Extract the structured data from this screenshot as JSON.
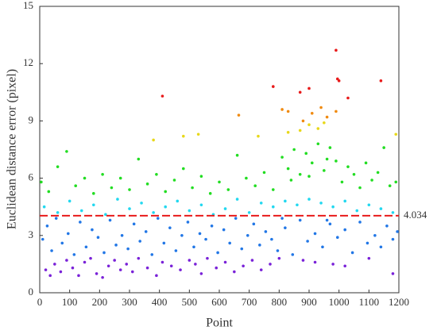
{
  "chart_data": {
    "type": "scatter",
    "xlabel": "Point",
    "ylabel": "Euclidean distance error (pixel)",
    "xlim": [
      0,
      1200
    ],
    "ylim": [
      0,
      15
    ],
    "xticks": [
      0,
      100,
      200,
      300,
      400,
      500,
      600,
      700,
      800,
      900,
      1000,
      1100,
      1200
    ],
    "yticks": [
      0,
      3,
      6,
      9,
      12,
      15
    ],
    "reference_line": {
      "y": 4.034,
      "color": "#e81a1a"
    },
    "series": [
      {
        "color": "#7a22d8",
        "x": [
          20,
          35,
          50,
          70,
          90,
          110,
          130,
          150,
          170,
          190,
          210,
          230,
          250,
          270,
          290,
          310,
          330,
          360,
          390,
          410,
          440,
          470,
          500,
          520,
          540,
          560,
          590,
          620,
          650,
          680,
          710,
          740,
          770,
          800,
          880,
          920,
          980,
          1020,
          1100,
          1180
        ],
        "y": [
          1.2,
          0.9,
          1.5,
          1.1,
          1.7,
          1.3,
          0.9,
          1.6,
          1.8,
          1.0,
          0.8,
          1.4,
          1.7,
          1.2,
          1.5,
          1.1,
          1.8,
          1.3,
          0.9,
          1.6,
          1.4,
          1.2,
          1.7,
          1.5,
          1.0,
          1.8,
          1.3,
          1.6,
          1.1,
          1.4,
          1.7,
          1.2,
          1.5,
          1.8,
          1.7,
          1.6,
          1.5,
          1.4,
          1.8,
          1.0
        ]
      },
      {
        "color": "#2277e6",
        "x": [
          10,
          25,
          40,
          55,
          75,
          95,
          115,
          135,
          155,
          175,
          195,
          215,
          235,
          255,
          275,
          295,
          315,
          335,
          355,
          375,
          395,
          415,
          435,
          455,
          475,
          495,
          515,
          535,
          555,
          575,
          595,
          615,
          635,
          655,
          675,
          695,
          715,
          735,
          755,
          775,
          795,
          820,
          845,
          870,
          895,
          920,
          945,
          970,
          995,
          1020,
          1045,
          1070,
          1095,
          1120,
          1140,
          1160,
          1180,
          1195,
          810,
          960
        ],
        "y": [
          2.8,
          3.5,
          2.2,
          3.9,
          2.6,
          3.1,
          2.0,
          3.7,
          2.4,
          3.3,
          2.9,
          2.1,
          3.8,
          2.5,
          3.0,
          2.3,
          3.6,
          2.7,
          3.2,
          2.0,
          3.9,
          2.6,
          3.4,
          2.2,
          3.0,
          3.7,
          2.4,
          3.1,
          2.8,
          3.5,
          2.1,
          3.3,
          2.6,
          3.9,
          2.3,
          3.0,
          3.6,
          2.5,
          3.2,
          2.8,
          2.2,
          3.4,
          2.0,
          3.8,
          2.7,
          3.1,
          2.4,
          3.6,
          2.9,
          3.3,
          2.1,
          3.7,
          2.6,
          3.0,
          2.4,
          3.5,
          2.8,
          3.2,
          3.9,
          3.8
        ]
      },
      {
        "color": "#22d8f0",
        "x": [
          15,
          60,
          100,
          140,
          180,
          220,
          260,
          300,
          340,
          380,
          420,
          460,
          500,
          540,
          580,
          620,
          660,
          700,
          740,
          780,
          820,
          860,
          900,
          940,
          980,
          1020,
          1060,
          1100,
          1140,
          1180
        ],
        "y": [
          4.5,
          4.2,
          4.8,
          4.3,
          4.6,
          4.1,
          4.9,
          4.4,
          4.7,
          4.2,
          4.5,
          4.8,
          4.3,
          4.6,
          4.1,
          4.4,
          4.9,
          4.2,
          4.7,
          4.5,
          4.8,
          4.6,
          4.9,
          4.7,
          4.5,
          4.8,
          4.3,
          4.6,
          4.4,
          4.2
        ]
      },
      {
        "color": "#22dd22",
        "x": [
          5,
          30,
          60,
          90,
          120,
          150,
          180,
          210,
          240,
          270,
          300,
          330,
          360,
          390,
          420,
          450,
          480,
          510,
          540,
          570,
          600,
          630,
          660,
          690,
          720,
          750,
          780,
          810,
          830,
          850,
          870,
          890,
          910,
          930,
          950,
          970,
          990,
          1010,
          1030,
          1050,
          1070,
          1090,
          1110,
          1130,
          1150,
          1170,
          1190,
          840,
          900,
          960
        ],
        "y": [
          5.8,
          5.3,
          6.6,
          7.4,
          5.6,
          6.0,
          5.2,
          6.2,
          5.5,
          6.0,
          5.4,
          7.0,
          5.7,
          6.2,
          5.3,
          5.9,
          6.5,
          5.5,
          6.1,
          5.2,
          5.8,
          5.4,
          7.2,
          6.0,
          5.6,
          6.3,
          5.4,
          7.1,
          6.5,
          7.5,
          6.2,
          7.3,
          6.8,
          7.8,
          6.4,
          7.6,
          6.9,
          5.8,
          6.6,
          6.2,
          5.5,
          6.8,
          5.9,
          6.3,
          7.6,
          5.6,
          5.8,
          5.9,
          6.1,
          7.0
        ]
      },
      {
        "color": "#e8d81a",
        "x": [
          380,
          480,
          530,
          730,
          830,
          870,
          900,
          930,
          950,
          1190
        ],
        "y": [
          8.0,
          8.2,
          8.3,
          8.2,
          8.4,
          8.5,
          8.8,
          8.6,
          8.9,
          8.3
        ]
      },
      {
        "color": "#f08a10",
        "x": [
          665,
          810,
          830,
          880,
          910,
          940,
          960,
          990
        ],
        "y": [
          9.3,
          9.6,
          9.5,
          9.0,
          9.4,
          9.7,
          9.2,
          9.5
        ]
      },
      {
        "color": "#e81a1a",
        "x": [
          410,
          780,
          870,
          900,
          990,
          995,
          1000,
          1030,
          1140
        ],
        "y": [
          10.3,
          10.8,
          10.5,
          10.7,
          12.7,
          11.2,
          11.1,
          10.2,
          11.1
        ]
      }
    ]
  }
}
